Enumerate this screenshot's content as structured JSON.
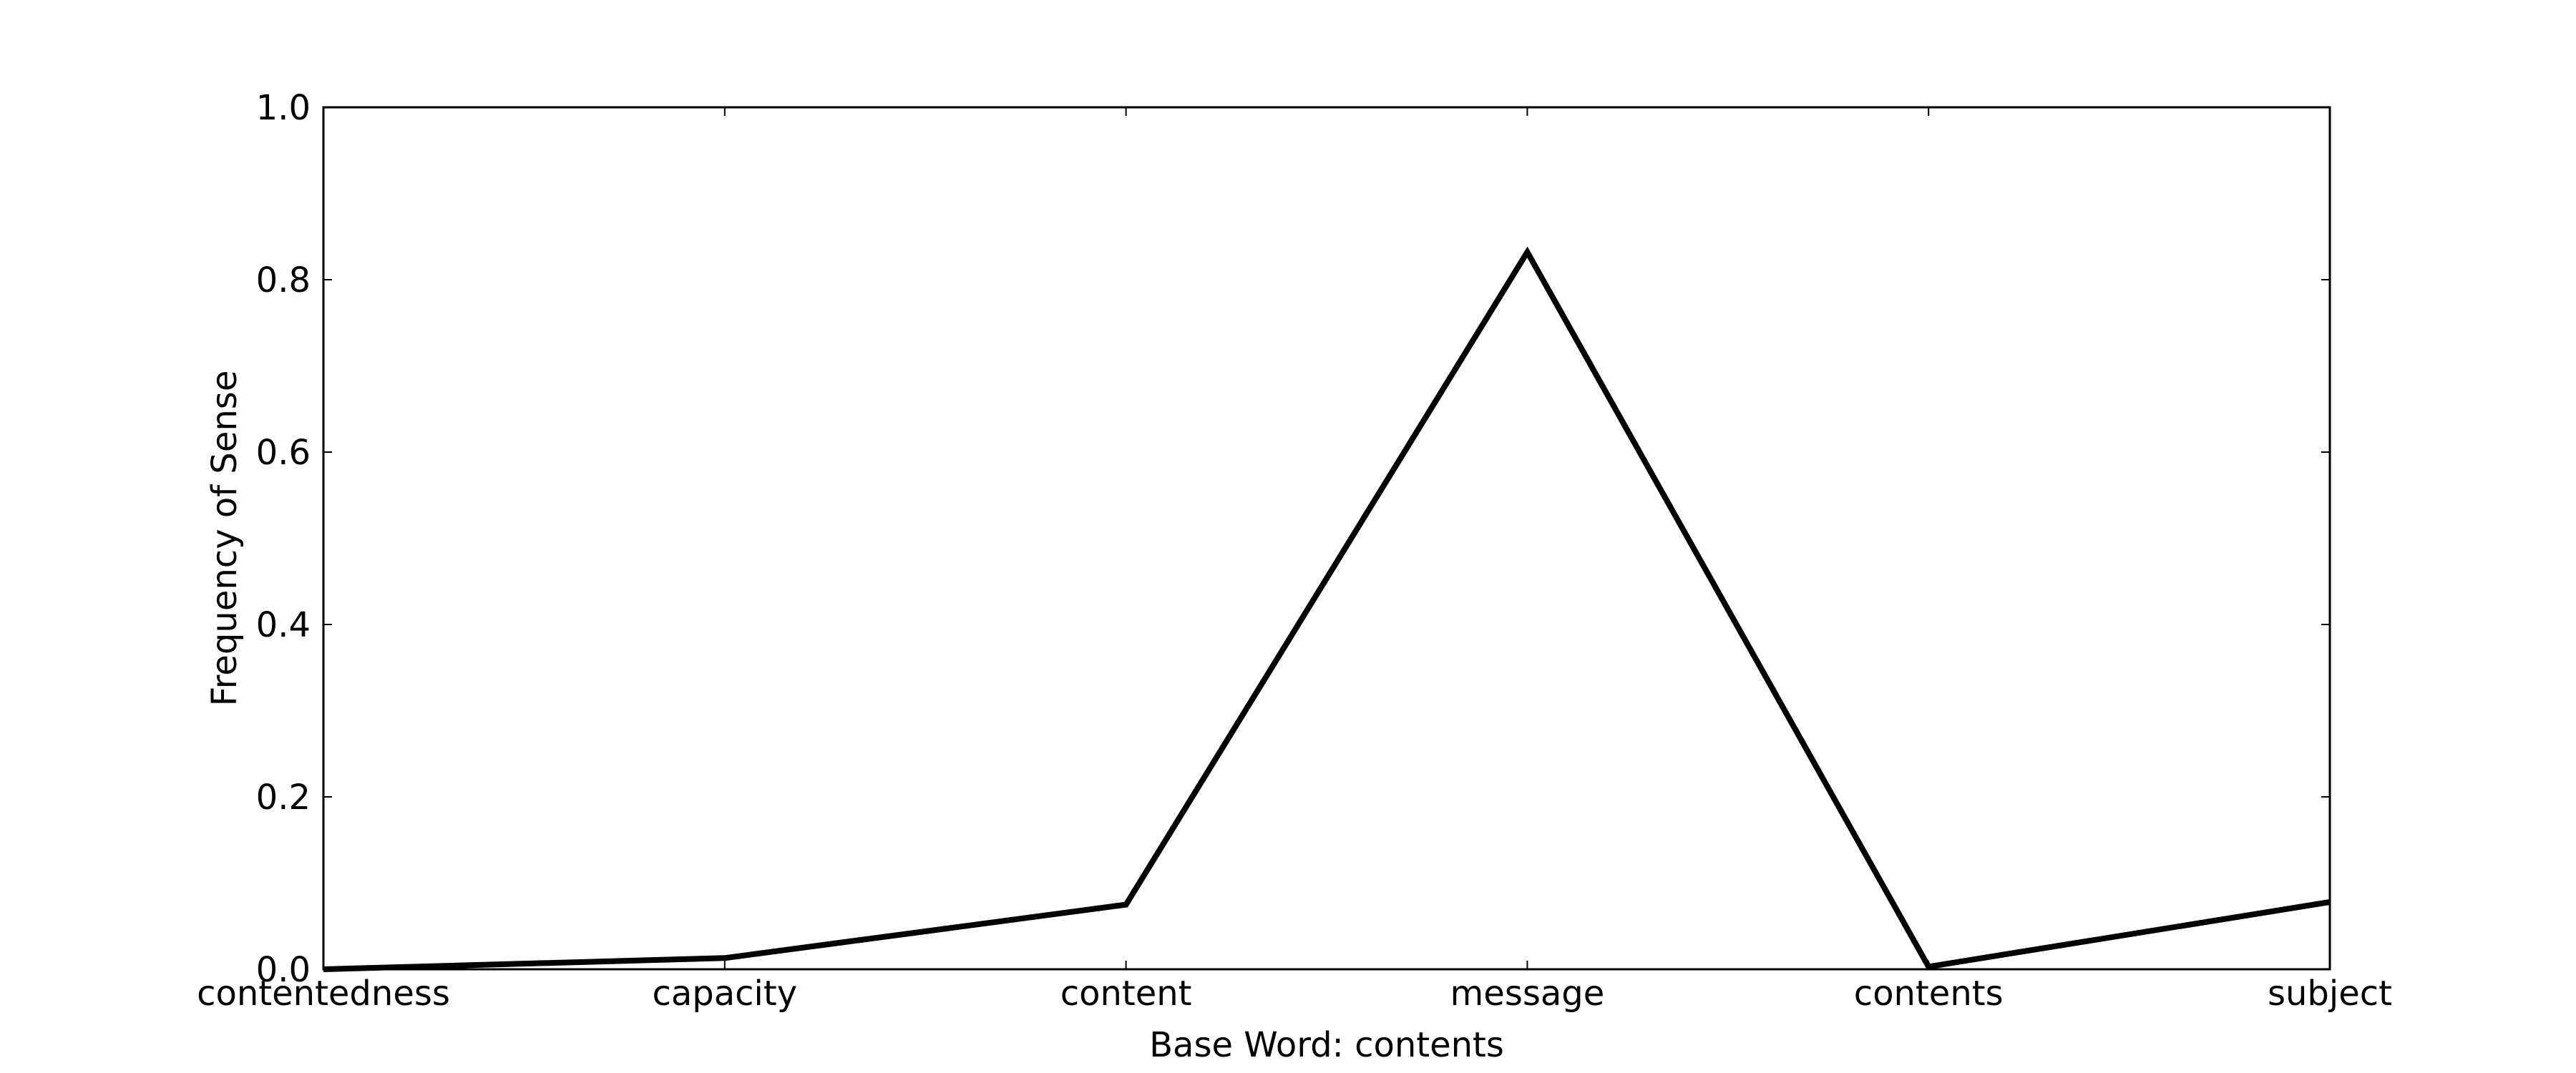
{
  "chart_data": {
    "type": "line",
    "categories": [
      "contentedness",
      "capacity",
      "content",
      "message",
      "contents",
      "subject"
    ],
    "series": [
      {
        "values": [
          0.0,
          0.013,
          0.075,
          0.832,
          0.003,
          0.078
        ]
      }
    ],
    "xlabel": "Base Word: contents",
    "ylabel": "Frequency of Sense",
    "ylim": [
      0.0,
      1.0
    ],
    "yticks": [
      "0.0",
      "0.2",
      "0.4",
      "0.6",
      "0.8",
      "1.0"
    ],
    "grid": false,
    "legend": "none",
    "colors": {
      "line": "#000000",
      "axes": "#000000",
      "background": "#ffffff"
    }
  }
}
